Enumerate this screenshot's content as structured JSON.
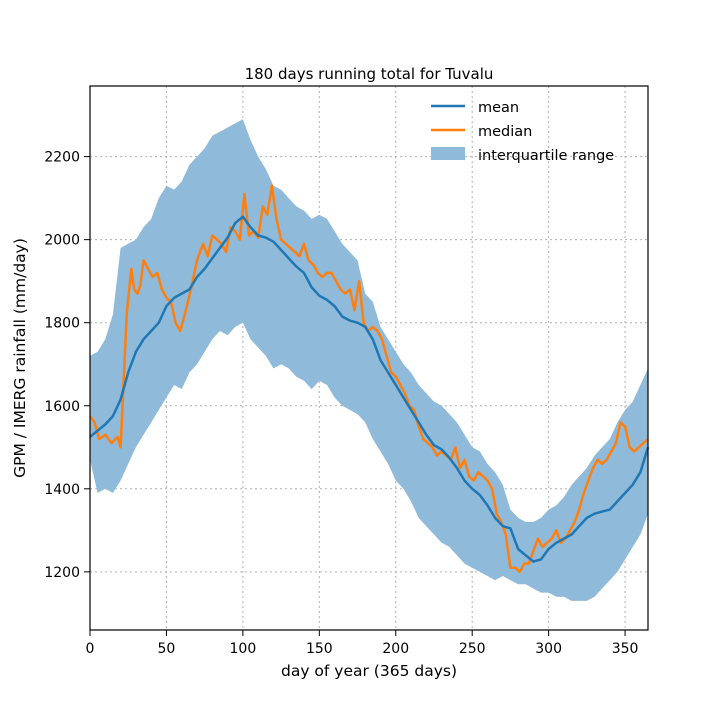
{
  "chart_data": {
    "type": "line",
    "title": "180 days running total for Tuvalu",
    "xlabel": "day of year (365 days)",
    "ylabel": "GPM / IMERG rainfall (mm/day)",
    "xlim": [
      0,
      365
    ],
    "ylim": [
      1060,
      2370
    ],
    "xticks": [
      0,
      50,
      100,
      150,
      200,
      250,
      300,
      350
    ],
    "yticks": [
      1200,
      1400,
      1600,
      1800,
      2000,
      2200
    ],
    "grid": true,
    "legend_position": "top-right",
    "legend": [
      "mean",
      "median",
      "interquartile range"
    ],
    "colors": {
      "mean": "#1f77b4",
      "median": "#ff7f0e",
      "band": "#8fbad9"
    },
    "series": [
      {
        "name": "mean",
        "x": [
          0,
          5,
          10,
          15,
          20,
          25,
          30,
          35,
          40,
          45,
          50,
          55,
          60,
          65,
          70,
          75,
          80,
          85,
          90,
          95,
          100,
          105,
          110,
          115,
          120,
          125,
          130,
          135,
          140,
          145,
          150,
          155,
          160,
          165,
          170,
          175,
          180,
          185,
          190,
          195,
          200,
          205,
          210,
          215,
          220,
          225,
          230,
          235,
          240,
          245,
          250,
          255,
          260,
          265,
          270,
          275,
          280,
          285,
          290,
          295,
          300,
          305,
          310,
          315,
          320,
          325,
          330,
          335,
          340,
          345,
          350,
          355,
          360,
          365
        ],
        "values": [
          1525,
          1540,
          1555,
          1575,
          1615,
          1680,
          1730,
          1760,
          1780,
          1800,
          1840,
          1860,
          1870,
          1880,
          1910,
          1930,
          1955,
          1980,
          2005,
          2040,
          2055,
          2030,
          2010,
          2005,
          1995,
          1975,
          1955,
          1935,
          1920,
          1885,
          1865,
          1855,
          1840,
          1815,
          1805,
          1800,
          1790,
          1760,
          1710,
          1680,
          1650,
          1620,
          1590,
          1560,
          1530,
          1505,
          1495,
          1475,
          1450,
          1420,
          1400,
          1385,
          1360,
          1330,
          1310,
          1305,
          1255,
          1240,
          1225,
          1230,
          1255,
          1270,
          1280,
          1290,
          1310,
          1330,
          1340,
          1345,
          1350,
          1370,
          1390,
          1410,
          1440,
          1500
        ]
      },
      {
        "name": "median",
        "x": [
          0,
          3,
          6,
          10,
          14,
          18,
          20,
          24,
          27,
          29,
          31,
          33,
          35,
          38,
          41,
          44,
          47,
          50,
          53,
          56,
          59,
          62,
          66,
          70,
          74,
          77,
          80,
          83,
          86,
          89,
          92,
          95,
          98,
          101,
          104,
          107,
          110,
          113,
          116,
          119,
          122,
          125,
          128,
          131,
          134,
          137,
          140,
          143,
          146,
          149,
          152,
          155,
          158,
          161,
          164,
          167,
          170,
          173,
          176,
          179,
          182,
          185,
          188,
          191,
          194,
          197,
          200,
          203,
          206,
          209,
          212,
          215,
          218,
          221,
          224,
          227,
          230,
          233,
          236,
          239,
          242,
          245,
          248,
          251,
          254,
          257,
          260,
          263,
          266,
          269,
          272,
          275,
          278,
          281,
          284,
          287,
          290,
          293,
          296,
          299,
          302,
          305,
          308,
          311,
          314,
          317,
          320,
          323,
          326,
          329,
          332,
          335,
          338,
          341,
          344,
          347,
          350,
          353,
          356,
          359,
          362,
          365
        ],
        "values": [
          1575,
          1560,
          1520,
          1530,
          1510,
          1525,
          1500,
          1820,
          1930,
          1880,
          1870,
          1890,
          1950,
          1930,
          1910,
          1920,
          1880,
          1860,
          1850,
          1800,
          1780,
          1820,
          1880,
          1950,
          1990,
          1960,
          2010,
          2000,
          1990,
          1970,
          2030,
          2020,
          2000,
          2110,
          2010,
          2020,
          2005,
          2080,
          2060,
          2130,
          2050,
          2000,
          1990,
          1980,
          1970,
          1960,
          1990,
          1950,
          1940,
          1920,
          1910,
          1920,
          1920,
          1900,
          1880,
          1870,
          1880,
          1830,
          1900,
          1800,
          1780,
          1790,
          1780,
          1760,
          1720,
          1680,
          1670,
          1650,
          1630,
          1600,
          1590,
          1550,
          1520,
          1510,
          1500,
          1480,
          1490,
          1480,
          1470,
          1500,
          1450,
          1470,
          1430,
          1420,
          1440,
          1430,
          1420,
          1400,
          1340,
          1320,
          1290,
          1210,
          1210,
          1200,
          1220,
          1220,
          1250,
          1280,
          1260,
          1270,
          1280,
          1300,
          1270,
          1280,
          1300,
          1320,
          1350,
          1390,
          1420,
          1450,
          1470,
          1460,
          1470,
          1490,
          1510,
          1560,
          1550,
          1500,
          1490,
          1500,
          1510,
          1520
        ]
      }
    ],
    "band": {
      "name": "interquartile range",
      "x": [
        0,
        5,
        10,
        15,
        20,
        25,
        30,
        35,
        40,
        45,
        50,
        55,
        60,
        65,
        70,
        75,
        80,
        85,
        90,
        95,
        100,
        105,
        110,
        115,
        120,
        125,
        130,
        135,
        140,
        145,
        150,
        155,
        160,
        165,
        170,
        175,
        180,
        185,
        190,
        195,
        200,
        205,
        210,
        215,
        220,
        225,
        230,
        235,
        240,
        245,
        250,
        255,
        260,
        265,
        270,
        275,
        280,
        285,
        290,
        295,
        300,
        305,
        310,
        315,
        320,
        325,
        330,
        335,
        340,
        345,
        350,
        355,
        360,
        365
      ],
      "lower": [
        1470,
        1390,
        1400,
        1390,
        1420,
        1460,
        1500,
        1530,
        1560,
        1590,
        1620,
        1650,
        1640,
        1680,
        1700,
        1730,
        1760,
        1780,
        1770,
        1790,
        1800,
        1760,
        1740,
        1720,
        1690,
        1700,
        1690,
        1670,
        1660,
        1640,
        1660,
        1650,
        1620,
        1600,
        1590,
        1580,
        1560,
        1520,
        1490,
        1460,
        1420,
        1400,
        1370,
        1330,
        1310,
        1290,
        1270,
        1260,
        1240,
        1220,
        1210,
        1200,
        1190,
        1180,
        1190,
        1180,
        1170,
        1170,
        1160,
        1150,
        1150,
        1140,
        1140,
        1130,
        1130,
        1130,
        1140,
        1160,
        1180,
        1200,
        1230,
        1260,
        1290,
        1340
      ],
      "upper": [
        1720,
        1730,
        1760,
        1820,
        1980,
        1990,
        2000,
        2030,
        2050,
        2100,
        2130,
        2120,
        2140,
        2180,
        2200,
        2220,
        2250,
        2260,
        2270,
        2280,
        2290,
        2240,
        2200,
        2170,
        2130,
        2120,
        2100,
        2080,
        2070,
        2050,
        2060,
        2050,
        2020,
        1990,
        1970,
        1950,
        1870,
        1850,
        1790,
        1760,
        1730,
        1700,
        1680,
        1650,
        1630,
        1610,
        1600,
        1580,
        1560,
        1530,
        1500,
        1490,
        1460,
        1440,
        1410,
        1350,
        1330,
        1320,
        1320,
        1330,
        1350,
        1360,
        1380,
        1410,
        1430,
        1450,
        1480,
        1500,
        1520,
        1560,
        1590,
        1610,
        1650,
        1690
      ]
    }
  }
}
